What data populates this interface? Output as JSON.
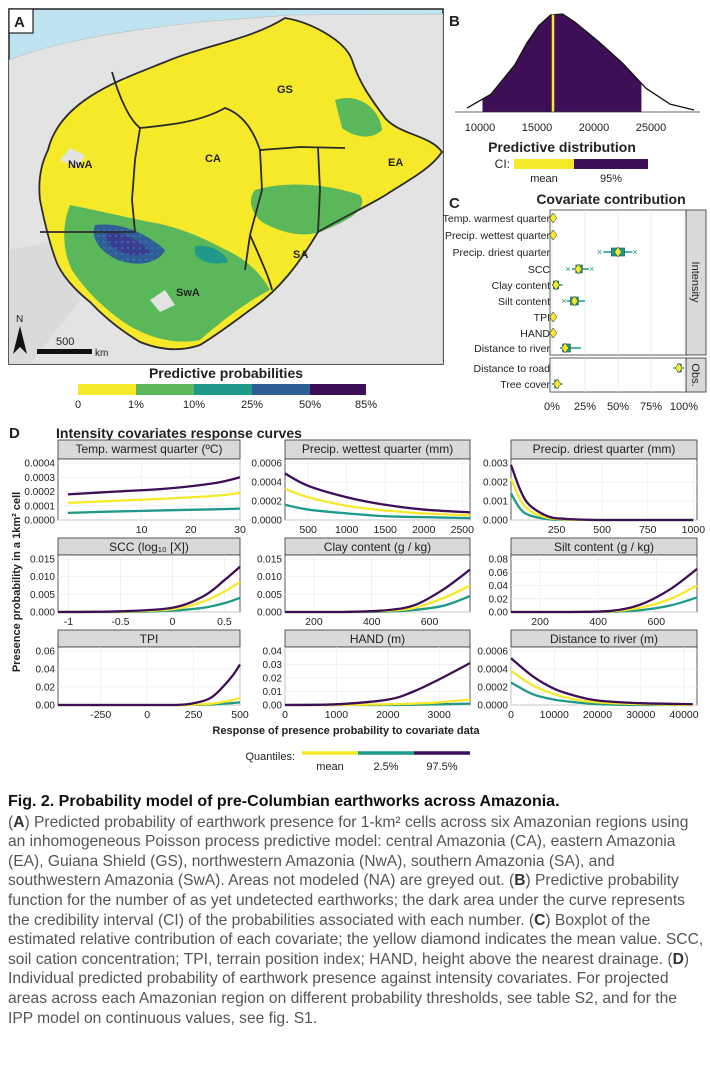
{
  "colors": {
    "yellow": "#F6E92A",
    "green": "#5BB85A",
    "teal": "#1F9A8A",
    "blue": "#2F5E96",
    "darkblue": "#3A3D8F",
    "purple": "#3E0F57",
    "sea": "#BFE3F0",
    "land": "#E3E3E3"
  },
  "panelA": {
    "label": "A",
    "regions": [
      "GS",
      "NwA",
      "CA",
      "EA",
      "SA",
      "SwA"
    ],
    "north": "N",
    "scale_value": "500",
    "scale_unit": "km",
    "legend_title": "Predictive probabilities",
    "legend_ticks": [
      "0",
      "1%",
      "10%",
      "25%",
      "50%",
      "85%"
    ]
  },
  "panelB": {
    "label": "B",
    "ticks": [
      "10000",
      "15000",
      "20000",
      "25000"
    ],
    "xlabel": "Predictive distribution",
    "ci_label": "CI:",
    "ci_items": [
      "mean",
      "95%"
    ]
  },
  "panelC": {
    "label": "C",
    "title": "Covariate contribution",
    "strip_intensity": "Intensity",
    "strip_obs": "Obs.",
    "ticks": [
      "0%",
      "25%",
      "50%",
      "75%",
      "100%"
    ]
  },
  "panelD": {
    "label": "D",
    "title": "Intensity covariates response curves",
    "ylabel": "Presence probability in a 1km² cell",
    "xlabel": "Response of presence probability to covariate data",
    "legend_label": "Quantiles:",
    "legend_items": [
      "mean",
      "2.5%",
      "97.5%"
    ]
  },
  "chart_data": [
    {
      "type": "area",
      "title": "Predictive distribution",
      "x": [
        9000,
        11000,
        13000,
        14000,
        15000,
        16000,
        17000,
        18000,
        19000,
        20000,
        22000,
        24000,
        26000,
        28000
      ],
      "density": [
        0.04,
        0.18,
        0.48,
        0.7,
        0.88,
        0.99,
        1.0,
        0.92,
        0.82,
        0.72,
        0.5,
        0.24,
        0.08,
        0.02
      ],
      "mean": 16200,
      "ci95": [
        10300,
        23600
      ],
      "xlim": [
        8000,
        28500
      ]
    },
    {
      "type": "scatter",
      "title": "Covariate contribution",
      "facets": [
        {
          "name": "Intensity",
          "covariates": [
            {
              "name": "Temp. warmest quarter",
              "mean": 1,
              "q1": 0,
              "q3": 1.5,
              "wlo": 0,
              "whi": 2,
              "out": []
            },
            {
              "name": "Precip. wettest quarter",
              "mean": 1,
              "q1": 0,
              "q3": 1.5,
              "wlo": 0,
              "whi": 2,
              "out": []
            },
            {
              "name": "Precip. driest quarter",
              "mean": 50,
              "q1": 45,
              "q3": 55,
              "wlo": 39,
              "whi": 61,
              "out": [
                36,
                63
              ]
            },
            {
              "name": "SCC",
              "mean": 20,
              "q1": 18,
              "q3": 23,
              "wlo": 15,
              "whi": 28,
              "out": [
                12,
                30
              ]
            },
            {
              "name": "Clay content",
              "mean": 3,
              "q1": 1,
              "q3": 5,
              "wlo": 0,
              "whi": 8,
              "out": []
            },
            {
              "name": "Silt content",
              "mean": 17,
              "q1": 14,
              "q3": 20,
              "wlo": 11,
              "whi": 25,
              "out": [
                9
              ]
            },
            {
              "name": "TPI",
              "mean": 1,
              "q1": 0,
              "q3": 1,
              "wlo": 0,
              "whi": 2,
              "out": []
            },
            {
              "name": "HAND",
              "mean": 1,
              "q1": 0,
              "q3": 1,
              "wlo": 0,
              "whi": 2,
              "out": []
            },
            {
              "name": "Distance to river",
              "mean": 10,
              "q1": 8,
              "q3": 14,
              "wlo": 6,
              "whi": 22,
              "out": []
            }
          ]
        },
        {
          "name": "Obs.",
          "covariates": [
            {
              "name": "Distance to road",
              "mean": 96,
              "q1": 95,
              "q3": 98,
              "wlo": 92,
              "whi": 100,
              "out": []
            },
            {
              "name": "Tree cover",
              "mean": 4,
              "q1": 2,
              "q3": 5,
              "wlo": 0,
              "whi": 8,
              "out": []
            }
          ]
        }
      ],
      "xlim": [
        0,
        100
      ]
    },
    {
      "type": "line",
      "title": "Intensity covariates response curves",
      "series_names": [
        "mean",
        "2.5%",
        "97.5%"
      ],
      "panels": [
        {
          "title": "Temp. warmest quarter (ºC)",
          "x": [
            -5,
            5,
            15,
            25,
            30
          ],
          "ylim": [
            0,
            0.0004
          ],
          "yticks": [
            "0.0000",
            "0.0001",
            "0.0002",
            "0.0003",
            "0.0004"
          ],
          "xticks": [
            10,
            20,
            30
          ],
          "xlim": [
            -7,
            30
          ],
          "mean": [
            0.00012,
            0.000135,
            0.00015,
            0.00017,
            0.00019
          ],
          "lo": [
            5e-05,
            6e-05,
            6.8e-05,
            7.5e-05,
            8e-05
          ],
          "hi": [
            0.00018,
            0.0002,
            0.00022,
            0.00026,
            0.0003
          ]
        },
        {
          "title": "Precip. wettest quarter (mm)",
          "x": [
            200,
            500,
            1000,
            1500,
            2000,
            2600
          ],
          "ylim": [
            0,
            0.0006
          ],
          "yticks": [
            "0.0000",
            "0.0002",
            "0.0004",
            "0.0006"
          ],
          "xticks": [
            500,
            1000,
            1500,
            2000,
            2500
          ],
          "xlim": [
            200,
            2600
          ],
          "mean": [
            0.00033,
            0.00024,
            0.00015,
            0.0001,
            7e-05,
            5e-05
          ],
          "lo": [
            0.00016,
            0.00011,
            7e-05,
            4e-05,
            3e-05,
            2e-05
          ],
          "hi": [
            0.00049,
            0.00036,
            0.00024,
            0.00016,
            0.00011,
            8e-05
          ]
        },
        {
          "title": "Precip. driest quarter (mm)",
          "x": [
            0,
            50,
            100,
            200,
            300,
            500,
            1000
          ],
          "ylim": [
            0,
            0.003
          ],
          "yticks": [
            "0.000",
            "0.001",
            "0.002",
            "0.003"
          ],
          "xticks": [
            250,
            500,
            750,
            1000
          ],
          "xlim": [
            0,
            1020
          ],
          "mean": [
            0.0022,
            0.0011,
            0.0005,
            0.00012,
            3e-05,
            0,
            0
          ],
          "lo": [
            0.0014,
            0.0006,
            0.00025,
            5e-05,
            1e-05,
            0,
            0
          ],
          "hi": [
            0.0029,
            0.0016,
            0.0008,
            0.0002,
            6e-05,
            0,
            0
          ]
        },
        {
          "title": "SCC (log₁₀ [X])",
          "x": [
            -1.1,
            -0.5,
            0,
            0.3,
            0.5,
            0.65
          ],
          "ylim": [
            0,
            0.015
          ],
          "yticks": [
            "0.000",
            "0.005",
            "0.010",
            "0.015"
          ],
          "xticks": [
            -1.0,
            -0.5,
            0.0,
            0.5
          ],
          "xlim": [
            -1.1,
            0.65
          ],
          "mean": [
            0,
            0.0001,
            0.0008,
            0.003,
            0.0058,
            0.0085
          ],
          "lo": [
            0,
            0,
            0.0004,
            0.0012,
            0.0025,
            0.004
          ],
          "hi": [
            0,
            0.0002,
            0.0012,
            0.0045,
            0.009,
            0.0128
          ]
        },
        {
          "title": "Clay content (g / kg)",
          "x": [
            100,
            300,
            450,
            550,
            650,
            740
          ],
          "ylim": [
            0,
            0.015
          ],
          "yticks": [
            "0.000",
            "0.005",
            "0.010",
            "0.015"
          ],
          "xticks": [
            200,
            400,
            600
          ],
          "xlim": [
            100,
            740
          ],
          "mean": [
            0,
            0,
            0.0003,
            0.0012,
            0.004,
            0.0075
          ],
          "lo": [
            0,
            0,
            0.0001,
            0.0006,
            0.0018,
            0.0045
          ],
          "hi": [
            0,
            0,
            0.0005,
            0.002,
            0.0065,
            0.012
          ]
        },
        {
          "title": "Silt content (g / kg)",
          "x": [
            100,
            300,
            450,
            550,
            650,
            740
          ],
          "ylim": [
            0,
            0.08
          ],
          "yticks": [
            "0.00",
            "0.02",
            "0.04",
            "0.06",
            "0.08"
          ],
          "xticks": [
            200,
            400,
            600
          ],
          "xlim": [
            100,
            740
          ],
          "mean": [
            0,
            0,
            0.001,
            0.007,
            0.02,
            0.04
          ],
          "lo": [
            0,
            0,
            0.0005,
            0.003,
            0.01,
            0.022
          ],
          "hi": [
            0,
            0,
            0.002,
            0.012,
            0.035,
            0.065
          ]
        },
        {
          "title": "TPI",
          "x": [
            -480,
            -250,
            0,
            150,
            250,
            350,
            450,
            500
          ],
          "ylim": [
            0,
            0.06
          ],
          "yticks": [
            "0.00",
            "0.02",
            "0.04",
            "0.06"
          ],
          "xticks": [
            -250,
            0,
            250,
            500
          ],
          "xlim": [
            -480,
            500
          ],
          "mean": [
            0,
            0,
            0,
            0,
            0.0003,
            0.0015,
            0.005,
            0.008
          ],
          "lo": [
            0,
            0,
            0,
            0,
            0.0001,
            0.0006,
            0.002,
            0.003
          ],
          "hi": [
            0,
            0,
            0,
            0,
            0.002,
            0.009,
            0.03,
            0.045
          ]
        },
        {
          "title": "HAND (m)",
          "x": [
            0,
            1000,
            2000,
            2500,
            3000,
            3600
          ],
          "ylim": [
            0,
            0.04
          ],
          "yticks": [
            "0.00",
            "0.01",
            "0.02",
            "0.03",
            "0.04"
          ],
          "xticks": [
            0,
            1000,
            2000,
            3000
          ],
          "xlim": [
            0,
            3600
          ],
          "mean": [
            0,
            0,
            0.0005,
            0.001,
            0.002,
            0.004
          ],
          "lo": [
            0,
            0,
            0,
            0.0002,
            0.0005,
            0.001
          ],
          "hi": [
            0,
            0.0005,
            0.004,
            0.01,
            0.019,
            0.031
          ]
        },
        {
          "title": "Distance to river (m)",
          "x": [
            0,
            5000,
            10000,
            15000,
            20000,
            30000,
            42000
          ],
          "ylim": [
            0,
            0.0006
          ],
          "yticks": [
            "0.0000",
            "0.0002",
            "0.0004",
            "0.0006"
          ],
          "xticks": [
            0,
            10000,
            20000,
            30000,
            40000
          ],
          "xlim": [
            0,
            43000
          ],
          "mean": [
            0.00038,
            0.00022,
            0.00012,
            6e-05,
            3e-05,
            1e-05,
            0
          ],
          "lo": [
            0.00025,
            0.00012,
            6e-05,
            3e-05,
            1e-05,
            0,
            0
          ],
          "hi": [
            0.00052,
            0.00032,
            0.00018,
            0.0001,
            5e-05,
            2e-05,
            1e-05
          ]
        }
      ]
    }
  ],
  "caption": {
    "title": "Fig. 2. Probability model of pre-Columbian earthworks across Amazonia.",
    "parts": [
      [
        "(",
        "A",
        ") Predicted probability of earthwork presence for 1-km² cells across six Amazonian regions using an inhomogeneous Poisson process predictive model: central Amazonia (CA), eastern Amazonia (EA), Guiana Shield (GS), northwestern Amazonia (NwA), southern Amazonia (SA), and southwestern Amazonia (SwA). Areas not modeled (NA) are greyed out. "
      ],
      [
        "(",
        "B",
        ") Predictive probability function for the number of as yet undetected earthworks; the dark area under the curve represents the credibility interval (CI) of the probabilities associated with each number. "
      ],
      [
        "(",
        "C",
        ") Boxplot of the estimated relative contribution of each covariate; the yellow diamond indicates the mean value. SCC, soil cation concentration; TPI, terrain position index; HAND, height above the nearest drainage. "
      ],
      [
        "(",
        "D",
        ") Individual predicted probability of earthwork presence against intensity covariates. For projected areas across each Amazonian region on different probability thresholds, see table S2, and for the IPP model on continuous values, see fig. S1."
      ]
    ]
  }
}
